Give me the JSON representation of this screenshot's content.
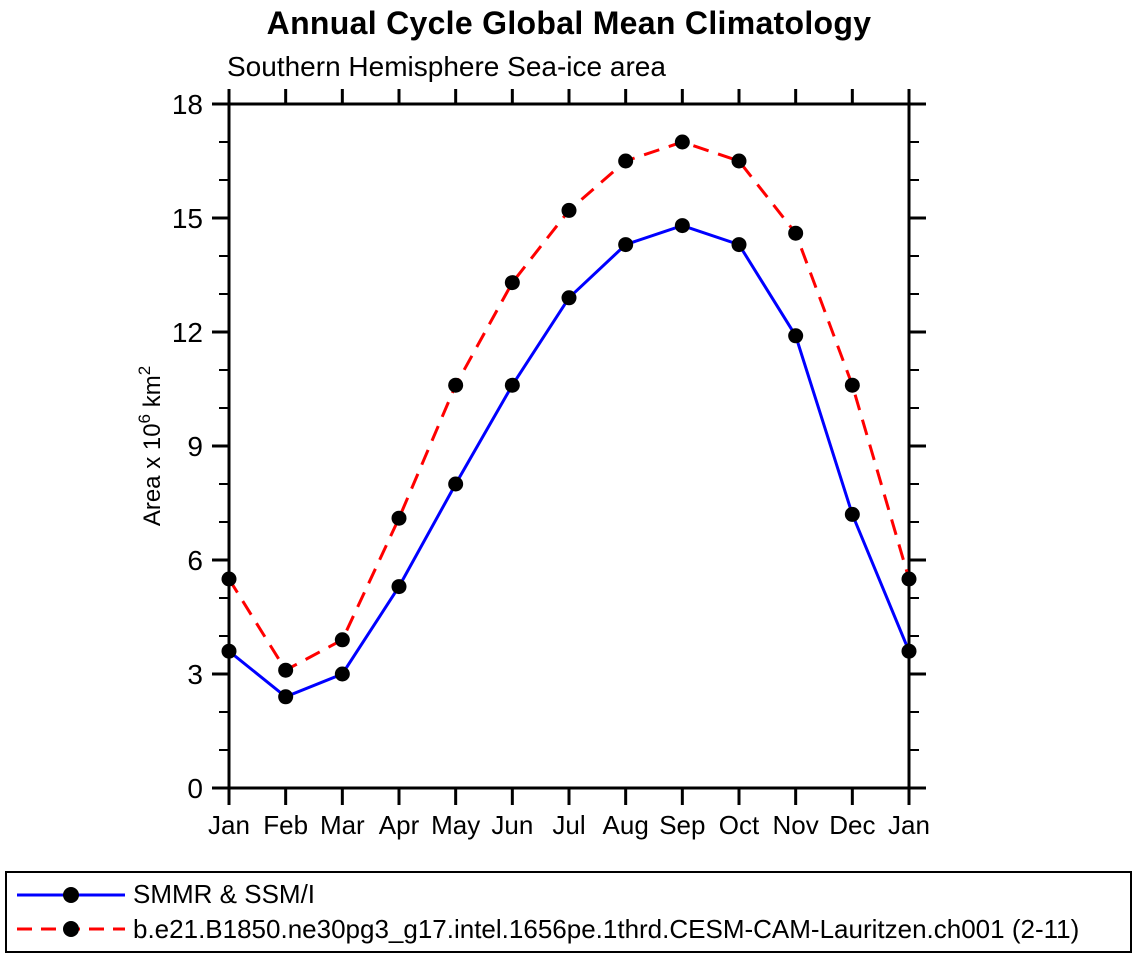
{
  "chart_data": {
    "type": "line",
    "title": "Annual Cycle Global Mean Climatology",
    "subtitle": "Southern Hemisphere Sea-ice area",
    "ylabel": "Area x 10^6 km^2",
    "xlabel": "",
    "ylim": [
      0,
      18
    ],
    "ytick_major": 3,
    "ytick_minor": 1,
    "grid": false,
    "legend_position": "bottom-box",
    "x": [
      "Jan",
      "Feb",
      "Mar",
      "Apr",
      "May",
      "Jun",
      "Jul",
      "Aug",
      "Sep",
      "Oct",
      "Nov",
      "Dec",
      "Jan"
    ],
    "series": [
      {
        "name": "SMMR & SSM/I",
        "color": "#0000ff",
        "style": "solid",
        "marker": "circle",
        "marker_color": "#000000",
        "values": [
          3.6,
          2.4,
          3.0,
          5.3,
          8.0,
          10.6,
          12.9,
          14.3,
          14.8,
          14.3,
          11.9,
          7.2,
          3.6
        ]
      },
      {
        "name": "b.e21.B1850.ne30pg3_g17.intel.1656pe.1thrd.CESM-CAM-Lauritzen.ch001 (2-11)",
        "color": "#ff0000",
        "style": "dashed",
        "marker": "circle",
        "marker_color": "#000000",
        "values": [
          5.5,
          3.1,
          3.9,
          7.1,
          10.6,
          13.3,
          15.2,
          16.5,
          17.0,
          16.5,
          14.6,
          10.6,
          5.5
        ]
      }
    ]
  },
  "colors": {
    "axis": "#000000",
    "text": "#000000",
    "background": "#ffffff"
  }
}
